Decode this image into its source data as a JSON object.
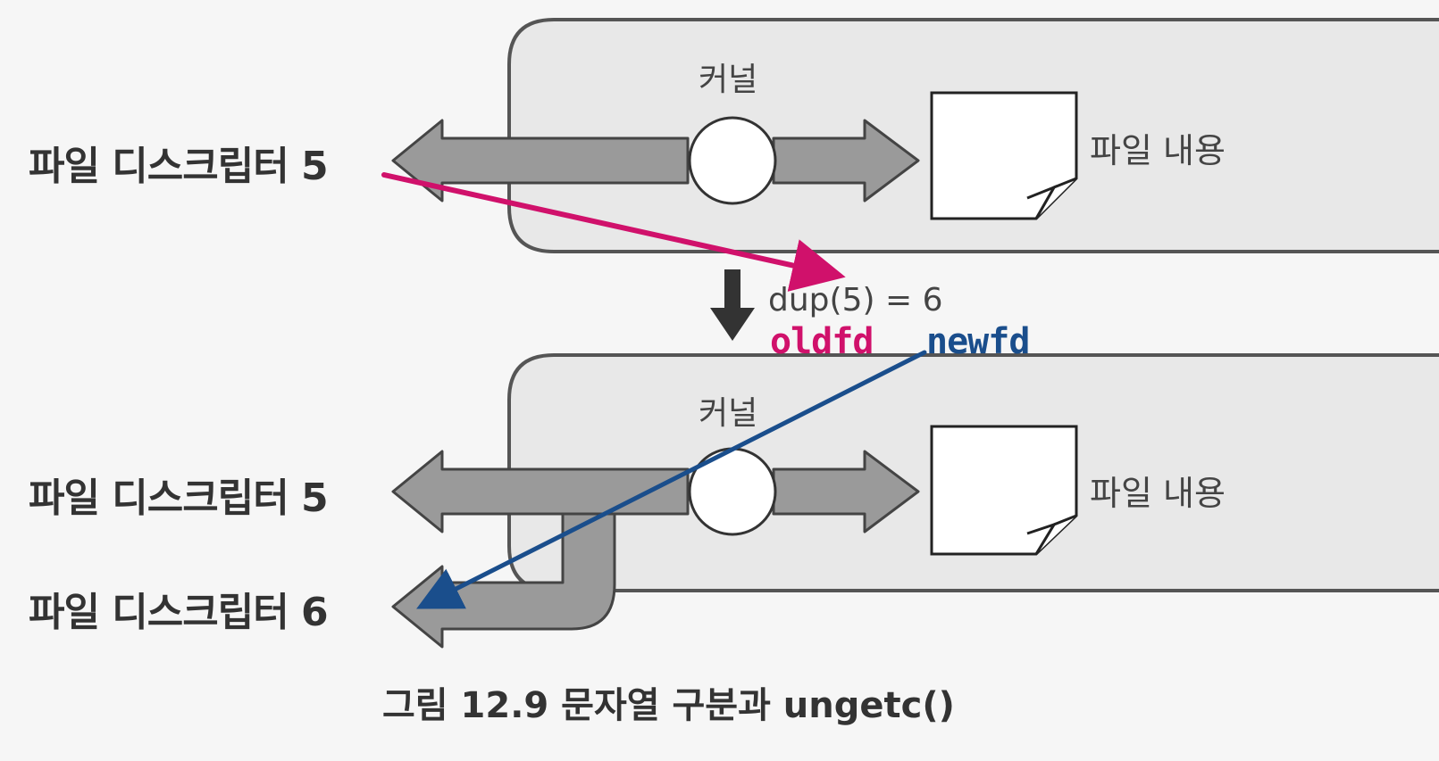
{
  "diagram": {
    "top_panel": {
      "kernel_label": "커널",
      "fd_label": "파일 디스크립터 5",
      "content_label": "파일 내용"
    },
    "transition": {
      "call_label": "dup(5) = 6",
      "oldfd_note": "oldfd",
      "newfd_note": "newfd"
    },
    "bottom_panel": {
      "kernel_label": "커널",
      "fd5_label": "파일 디스크립터 5",
      "fd6_label": "파일 디스크립터 6",
      "content_label": "파일 내용"
    },
    "caption": "그림 12.9  문자열 구분과 ungetc()"
  },
  "colors": {
    "panel_fill": "#e8e8e8",
    "panel_stroke": "#555555",
    "arrow_fill": "#9a9a9a",
    "annotation_pink": "#d0116b",
    "annotation_blue": "#1a4e8c"
  }
}
